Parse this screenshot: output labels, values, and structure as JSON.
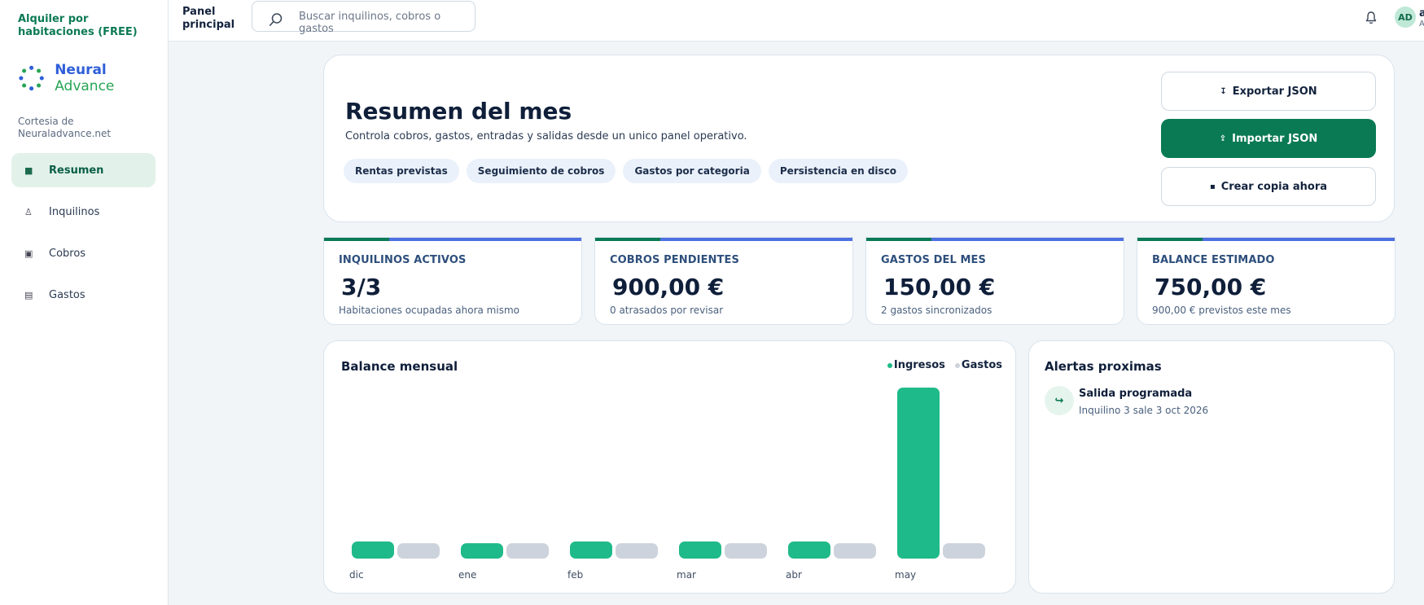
{
  "sidebar": {
    "brand_title": "Alquiler por habitaciones (FREE)",
    "logo": {
      "part1": "Neural",
      "part2": "Advance"
    },
    "courtesy": "Cortesia de Neuraladvance.net",
    "items": [
      {
        "label": "Resumen",
        "icon": "grid-square-icon",
        "glyph": "■"
      },
      {
        "label": "Inquilinos",
        "icon": "person-icon",
        "glyph": "♙"
      },
      {
        "label": "Cobros",
        "icon": "receipt-icon",
        "glyph": "▣"
      },
      {
        "label": "Gastos",
        "icon": "list-icon",
        "glyph": "▤"
      }
    ]
  },
  "topbar": {
    "title": "Panel principal",
    "search_placeholder": "Buscar inquilinos, cobros o gastos",
    "avatar": "AD",
    "user_name": "ad",
    "user_role": "Ad"
  },
  "hero": {
    "title": "Resumen del mes",
    "subtitle": "Controla cobros, gastos, entradas y salidas desde un unico panel operativo.",
    "chips": [
      "Rentas previstas",
      "Seguimiento de cobros",
      "Gastos por categoria",
      "Persistencia en disco"
    ],
    "buttons": {
      "export": "Exportar JSON",
      "import": "Importar JSON",
      "backup": "Crear copia ahora"
    }
  },
  "stats": [
    {
      "label": "INQUILINOS ACTIVOS",
      "value": "3/3",
      "note": "Habitaciones ocupadas ahora mismo"
    },
    {
      "label": "COBROS PENDIENTES",
      "value": "900,00 €",
      "note": "0 atrasados por revisar"
    },
    {
      "label": "GASTOS DEL MES",
      "value": "150,00 €",
      "note": "2 gastos sincronizados"
    },
    {
      "label": "BALANCE ESTIMADO",
      "value": "750,00 €",
      "note": "900,00 € previstos este mes"
    }
  ],
  "chart_data": {
    "type": "bar",
    "title": "Balance mensual",
    "categories": [
      "dic",
      "ene",
      "feb",
      "mar",
      "abr",
      "may"
    ],
    "series": [
      {
        "name": "Ingresos",
        "color": "#1fba89",
        "values": [
          0.1,
          0.09,
          0.1,
          0.1,
          0.1,
          1.0
        ]
      },
      {
        "name": "Gastos",
        "color": "#cdd3dc",
        "values": [
          0.09,
          0.09,
          0.09,
          0.09,
          0.09,
          0.09
        ]
      }
    ]
  },
  "alerts": {
    "title": "Alertas proximas",
    "items": [
      {
        "title": "Salida programada",
        "desc": "Inquilino 3 sale 3 oct 2026",
        "icon": "exit-arrow-icon"
      }
    ]
  }
}
